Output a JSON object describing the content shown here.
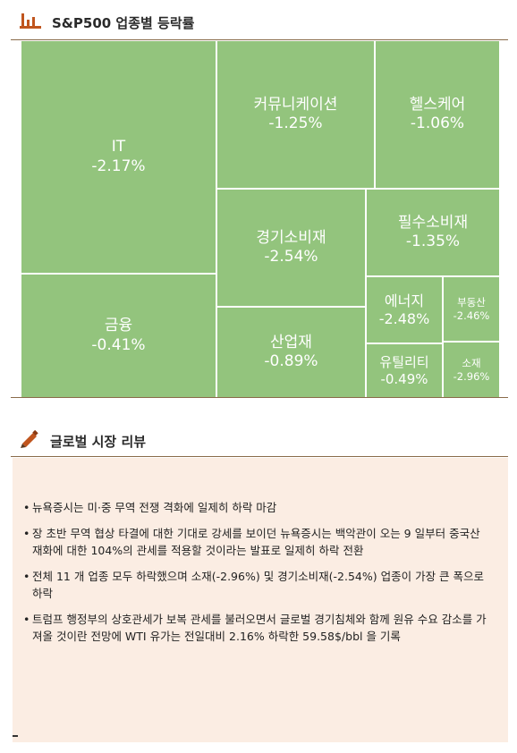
{
  "header": {
    "title": "S&P500 업종별 등락률",
    "icon": "bar-chart-icon"
  },
  "treemap": {
    "tile_color": "#93c47d",
    "tiles": [
      {
        "name": "IT",
        "value": "-2.17%"
      },
      {
        "name": "커뮤니케이션",
        "value": "-1.25%"
      },
      {
        "name": "헬스케어",
        "value": "-1.06%"
      },
      {
        "name": "경기소비재",
        "value": "-2.54%"
      },
      {
        "name": "필수소비재",
        "value": "-1.35%"
      },
      {
        "name": "금융",
        "value": "-0.41%"
      },
      {
        "name": "에너지",
        "value": "-2.48%"
      },
      {
        "name": "부동산",
        "value": "-2.46%"
      },
      {
        "name": "산업재",
        "value": "-0.89%"
      },
      {
        "name": "유틸리티",
        "value": "-0.49%"
      },
      {
        "name": "소재",
        "value": "-2.96%"
      }
    ]
  },
  "review": {
    "title": "글로벌 시장 리뷰",
    "icon": "pencil-icon",
    "bullets": [
      "뉴욕증시는 미·중 무역 전쟁 격화에 일제히 하락 마감",
      "장 초반 무역 협상 타결에 대한 기대로 강세를 보이던 뉴욕증시는 백악관이 오는 9 일부터 중국산 재화에 대한 104%의 관세를 적용할 것이라는 발표로 일제히 하락 전환",
      "전체 11 개 업종 모두 하락했으며 소재(-2.96%) 및 경기소비재(-2.54%) 업종이 가장 큰 폭으로 하락",
      "트럼프 행정부의 상호관세가 보복 관세를 불러오면서 글로벌 경기침체와 함께 원유 수요 감소를 가져올 것이란 전망에 WTI 유가는 전일대비 2.16% 하락한 59.58$/bbl 을 기록"
    ]
  },
  "colors": {
    "accent": "#c0551e",
    "tile": "#93c47d",
    "review_bg": "#fbede3",
    "rule": "#8a6b4a"
  }
}
